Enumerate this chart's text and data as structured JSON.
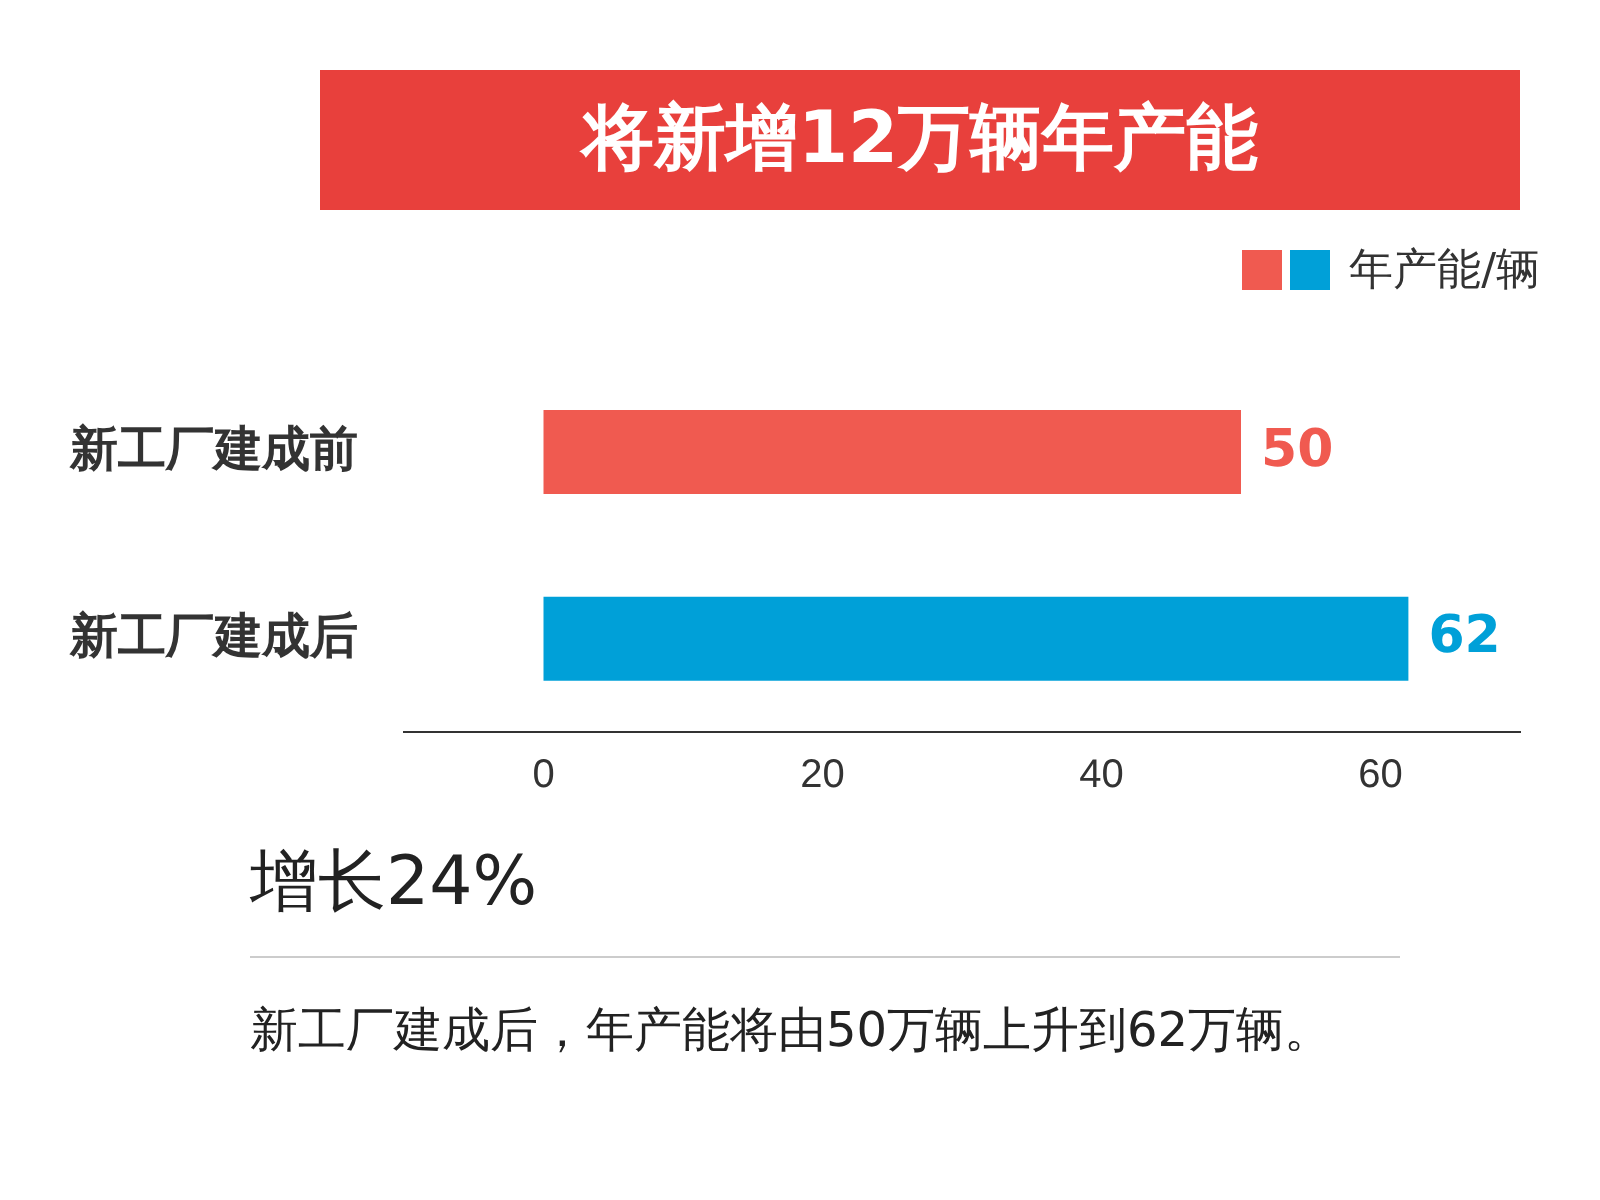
{
  "chart_data": {
    "type": "bar",
    "orientation": "horizontal",
    "title": "将新增12万辆年产能",
    "categories": [
      "新工厂建成前",
      "新工厂建成后"
    ],
    "series": [
      {
        "name": "年产能/辆",
        "colors": [
          "#f05a50",
          "#00a0d8"
        ],
        "values": [
          50,
          62
        ]
      }
    ],
    "xlim": [
      -10,
      70
    ],
    "xticks": [
      0,
      20,
      40,
      60
    ],
    "data_labels": true,
    "legend": "top right",
    "grid": false,
    "annotations": [
      "增长24%",
      "新工厂建成后，年产能将由50万辆上升到62万辆。"
    ]
  }
}
